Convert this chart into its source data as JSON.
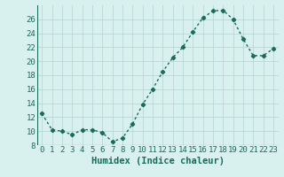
{
  "x": [
    0,
    1,
    2,
    3,
    4,
    5,
    6,
    7,
    8,
    9,
    10,
    11,
    12,
    13,
    14,
    15,
    16,
    17,
    18,
    19,
    20,
    21,
    22,
    23
  ],
  "y": [
    12.5,
    10.2,
    10.0,
    9.5,
    10.2,
    10.2,
    9.8,
    8.5,
    9.0,
    11.0,
    13.8,
    16.0,
    18.5,
    20.5,
    22.0,
    24.2,
    26.2,
    27.2,
    27.3,
    26.0,
    23.2,
    20.8,
    20.8,
    21.8
  ],
  "line_color": "#1a6b5a",
  "marker": "D",
  "marker_size": 2.2,
  "bg_color": "#d8f0ee",
  "grid_color": "#b8d8d4",
  "xlabel": "Humidex (Indice chaleur)",
  "ylim": [
    8,
    28
  ],
  "yticks": [
    8,
    10,
    12,
    14,
    16,
    18,
    20,
    22,
    24,
    26
  ],
  "xticks": [
    0,
    1,
    2,
    3,
    4,
    5,
    6,
    7,
    8,
    9,
    10,
    11,
    12,
    13,
    14,
    15,
    16,
    17,
    18,
    19,
    20,
    21,
    22,
    23
  ],
  "xlabel_fontsize": 7.5,
  "tick_fontsize": 6.5,
  "line_width": 1.0
}
